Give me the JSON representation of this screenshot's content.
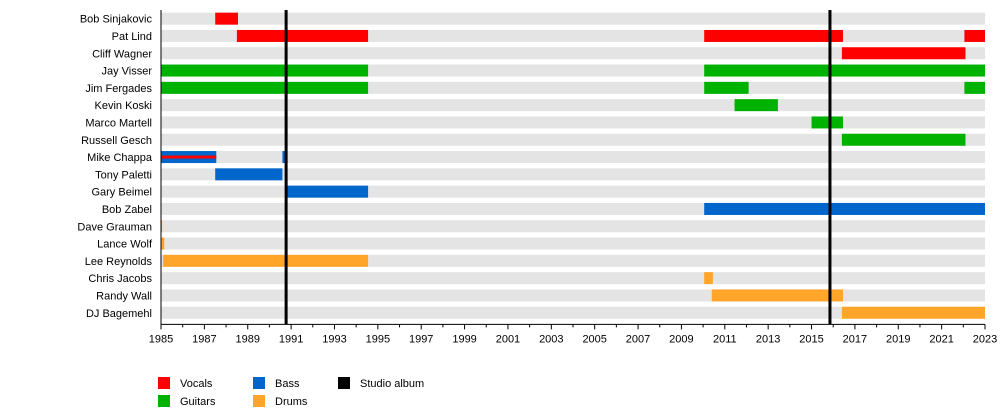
{
  "chart_data": {
    "type": "timeline",
    "xlim": [
      1985,
      2023
    ],
    "x_ticks": [
      1985,
      1987,
      1989,
      1991,
      1993,
      1995,
      1997,
      1999,
      2001,
      2003,
      2005,
      2007,
      2009,
      2011,
      2013,
      2015,
      2017,
      2019,
      2021,
      2023
    ],
    "colors": {
      "Vocals": "#ff0000",
      "Guitars": "#00b200",
      "Bass": "#0066cc",
      "Drums": "#ffa52a",
      "Studio album": "#000000",
      "row_bg": "#e4e4e4"
    },
    "legend": [
      {
        "label": "Vocals",
        "role": "Vocals"
      },
      {
        "label": "Guitars",
        "role": "Guitars"
      },
      {
        "label": "Bass",
        "role": "Bass"
      },
      {
        "label": "Drums",
        "role": "Drums"
      },
      {
        "label": "Studio album",
        "role": "Studio album"
      }
    ],
    "studio_albums": [
      1990.77,
      2015.85
    ],
    "members": [
      {
        "name": "Bob Sinjakovic",
        "spans": [
          {
            "role": "Vocals",
            "from": 1987.5,
            "to": 1988.55
          }
        ]
      },
      {
        "name": "Pat Lind",
        "spans": [
          {
            "role": "Vocals",
            "from": 1988.5,
            "to": 1994.55
          },
          {
            "role": "Vocals",
            "from": 2010.05,
            "to": 2016.45
          },
          {
            "role": "Vocals",
            "from": 2022.05,
            "to": 2023
          }
        ]
      },
      {
        "name": "Cliff Wagner",
        "spans": [
          {
            "role": "Vocals",
            "from": 2016.4,
            "to": 2022.1
          }
        ]
      },
      {
        "name": "Jay Visser",
        "spans": [
          {
            "role": "Guitars",
            "from": 1985,
            "to": 1994.55
          },
          {
            "role": "Guitars",
            "from": 2010.05,
            "to": 2023
          }
        ]
      },
      {
        "name": "Jim Fergades",
        "spans": [
          {
            "role": "Guitars",
            "from": 1985,
            "to": 1994.55
          },
          {
            "role": "Guitars",
            "from": 2010.05,
            "to": 2012.1
          },
          {
            "role": "Guitars",
            "from": 2022.05,
            "to": 2023
          }
        ]
      },
      {
        "name": "Kevin Koski",
        "spans": [
          {
            "role": "Guitars",
            "from": 2011.45,
            "to": 2013.45
          }
        ]
      },
      {
        "name": "Marco Martell",
        "spans": [
          {
            "role": "Guitars",
            "from": 2015.0,
            "to": 2016.45
          }
        ]
      },
      {
        "name": "Russell Gesch",
        "spans": [
          {
            "role": "Guitars",
            "from": 2016.4,
            "to": 2022.1
          }
        ]
      },
      {
        "name": "Mike Chappa",
        "spans": [
          {
            "role": "Bass",
            "from": 1985,
            "to": 1987.55
          },
          {
            "role": "Vocals",
            "from": 1985,
            "to": 1987.55,
            "thin": true
          },
          {
            "role": "Bass",
            "from": 1990.6,
            "to": 1990.8
          }
        ]
      },
      {
        "name": "Tony Paletti",
        "spans": [
          {
            "role": "Bass",
            "from": 1987.5,
            "to": 1990.6
          }
        ]
      },
      {
        "name": "Gary Beimel",
        "spans": [
          {
            "role": "Bass",
            "from": 1990.8,
            "to": 1994.55
          }
        ]
      },
      {
        "name": "Bob Zabel",
        "spans": [
          {
            "role": "Bass",
            "from": 2010.05,
            "to": 2023
          }
        ]
      },
      {
        "name": "Dave Grauman",
        "spans": [
          {
            "role": "Drums",
            "from": 1985,
            "to": 1985.05
          }
        ]
      },
      {
        "name": "Lance Wolf",
        "spans": [
          {
            "role": "Drums",
            "from": 1985,
            "to": 1985.15
          }
        ]
      },
      {
        "name": "Lee Reynolds",
        "spans": [
          {
            "role": "Drums",
            "from": 1985.1,
            "to": 1994.55
          }
        ]
      },
      {
        "name": "Chris Jacobs",
        "spans": [
          {
            "role": "Drums",
            "from": 2010.05,
            "to": 2010.45
          }
        ]
      },
      {
        "name": "Randy Wall",
        "spans": [
          {
            "role": "Drums",
            "from": 2010.4,
            "to": 2016.45
          }
        ]
      },
      {
        "name": "DJ Bagemehl",
        "spans": [
          {
            "role": "Drums",
            "from": 2016.4,
            "to": 2023
          }
        ]
      }
    ]
  }
}
